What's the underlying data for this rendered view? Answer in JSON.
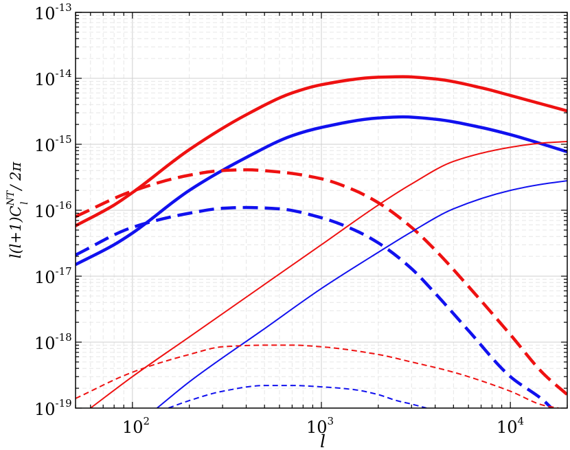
{
  "chart_data": {
    "type": "line",
    "xscale": "log",
    "yscale": "log",
    "xlim": [
      50,
      20000
    ],
    "ylim": [
      1e-19,
      1e-13
    ],
    "grid": true,
    "xlabel": "l",
    "ylabel": {
      "pre": "l(l+1)C",
      "sup": "NT",
      "sub": "l",
      "post": " / 2π"
    },
    "x_ticks": [
      {
        "base": "10",
        "exp": "2",
        "value": 100
      },
      {
        "base": "10",
        "exp": "3",
        "value": 1000
      },
      {
        "base": "10",
        "exp": "4",
        "value": 10000
      }
    ],
    "y_ticks": [
      {
        "base": "10",
        "exp": "-19",
        "value": 1e-19
      },
      {
        "base": "10",
        "exp": "-18",
        "value": 1e-18
      },
      {
        "base": "10",
        "exp": "-17",
        "value": 1e-17
      },
      {
        "base": "10",
        "exp": "-16",
        "value": 1e-16
      },
      {
        "base": "10",
        "exp": "-15",
        "value": 1e-15
      },
      {
        "base": "10",
        "exp": "-14",
        "value": 1e-14
      },
      {
        "base": "10",
        "exp": "-13",
        "value": 1e-13
      }
    ],
    "series": [
      {
        "color": "#ee1111",
        "width": 4.5,
        "dash": "",
        "x": [
          50,
          80,
          100,
          200,
          400,
          700,
          1000,
          2000,
          2700,
          4000,
          7000,
          10000,
          20000
        ],
        "y": [
          5.8e-17,
          1.2e-16,
          1.85e-16,
          8.3e-16,
          2.8e-15,
          6e-15,
          8e-15,
          1.04e-14,
          1.06e-14,
          9.8e-15,
          7.2e-15,
          5.5e-15,
          3.2e-15
        ]
      },
      {
        "color": "#1111ee",
        "width": 4.5,
        "dash": "",
        "x": [
          50,
          80,
          100,
          200,
          400,
          700,
          1000,
          2000,
          2700,
          4000,
          7000,
          10000,
          20000
        ],
        "y": [
          1.5e-17,
          3e-17,
          4.5e-17,
          2e-16,
          6.3e-16,
          1.35e-15,
          1.8e-15,
          2.5e-15,
          2.6e-15,
          2.4e-15,
          1.8e-15,
          1.4e-15,
          7.7e-16
        ]
      },
      {
        "color": "#ee1111",
        "width": 4.5,
        "dash": "22 10",
        "x": [
          50,
          100,
          200,
          300,
          400,
          600,
          1000,
          1500,
          2000,
          3000,
          4000,
          6000,
          10000,
          15000,
          20000
        ],
        "y": [
          8e-17,
          1.95e-16,
          3.4e-16,
          4e-16,
          4.1e-16,
          3.8e-16,
          3e-16,
          2e-16,
          1.3e-16,
          5.5e-17,
          2.5e-17,
          7e-18,
          1.3e-18,
          3.3e-19,
          1.6e-19
        ]
      },
      {
        "color": "#1111ee",
        "width": 4.5,
        "dash": "22 10",
        "x": [
          50,
          100,
          200,
          300,
          400,
          600,
          1000,
          1500,
          2000,
          3000,
          4000,
          6000,
          10000,
          15000,
          16500
        ],
        "y": [
          2.1e-17,
          5.5e-17,
          9e-17,
          1.07e-16,
          1.1e-16,
          1.05e-16,
          7.7e-17,
          5e-17,
          3.2e-17,
          1.3e-17,
          5.5e-18,
          1.5e-18,
          3e-19,
          1.3e-19,
          1e-19
        ]
      },
      {
        "color": "#ee1111",
        "width": 2,
        "dash": "",
        "x": [
          60,
          100,
          200,
          500,
          1000,
          2000,
          3000,
          5000,
          10000,
          15000,
          20000
        ],
        "y": [
          1e-19,
          3e-19,
          1.2e-18,
          7.5e-18,
          3e-17,
          1.2e-16,
          2.5e-16,
          5.5e-16,
          9e-16,
          1.05e-15,
          1.1e-15
        ]
      },
      {
        "color": "#1111ee",
        "width": 2,
        "dash": "",
        "x": [
          135,
          200,
          500,
          1000,
          2000,
          3000,
          5000,
          10000,
          15000,
          20000
        ],
        "y": [
          1e-19,
          2.5e-19,
          1.6e-18,
          6.5e-18,
          2.3e-17,
          4.7e-17,
          1.05e-16,
          2e-16,
          2.5e-16,
          2.8e-16
        ]
      },
      {
        "color": "#ee1111",
        "width": 2,
        "dash": "8 5",
        "x": [
          50,
          100,
          200,
          300,
          500,
          700,
          1000,
          2000,
          3000,
          5000,
          10000,
          15000,
          18000
        ],
        "y": [
          1.4e-19,
          3.5e-19,
          6.5e-19,
          8.5e-19,
          9e-19,
          9e-19,
          8.5e-19,
          6.5e-19,
          5e-19,
          3.5e-19,
          1.8e-19,
          1.1e-19,
          1e-19
        ]
      },
      {
        "color": "#1111ee",
        "width": 2,
        "dash": "8 5",
        "x": [
          155,
          200,
          300,
          500,
          700,
          1000,
          1500,
          2000,
          2500,
          3000,
          3600
        ],
        "y": [
          1e-19,
          1.3e-19,
          1.8e-19,
          2.2e-19,
          2.2e-19,
          2.1e-19,
          1.9e-19,
          1.6e-19,
          1.3e-19,
          1.15e-19,
          1e-19
        ]
      }
    ]
  }
}
